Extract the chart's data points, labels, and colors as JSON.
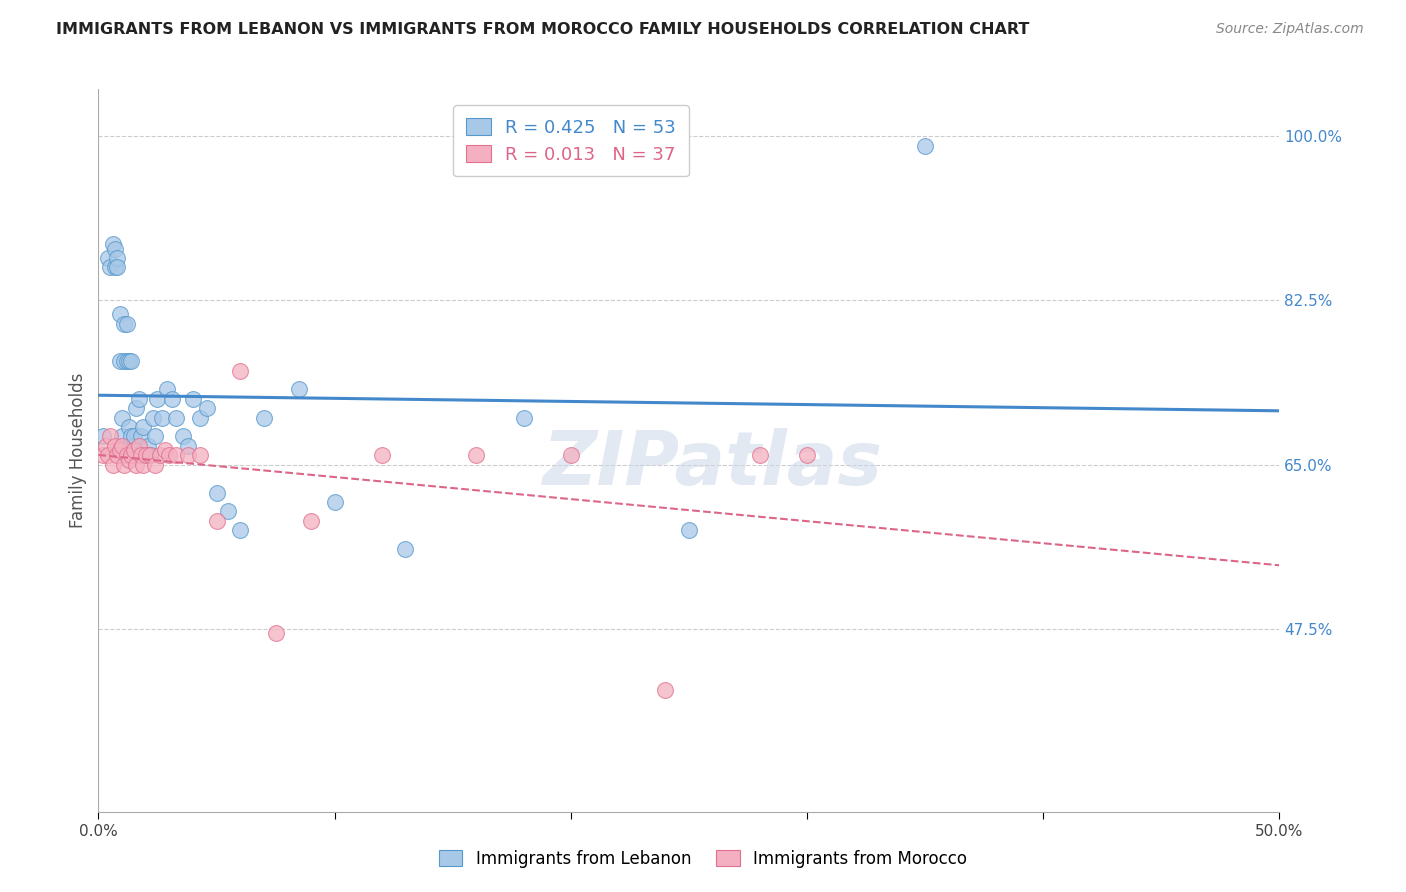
{
  "title": "IMMIGRANTS FROM LEBANON VS IMMIGRANTS FROM MOROCCO FAMILY HOUSEHOLDS CORRELATION CHART",
  "source": "Source: ZipAtlas.com",
  "ylabel": "Family Households",
  "xlim": [
    0.0,
    0.5
  ],
  "ylim": [
    0.28,
    1.05
  ],
  "yticks": [
    0.475,
    0.65,
    0.825,
    1.0
  ],
  "ytick_labels": [
    "47.5%",
    "65.0%",
    "82.5%",
    "100.0%"
  ],
  "xticks": [
    0.0,
    0.1,
    0.2,
    0.3,
    0.4,
    0.5
  ],
  "xtick_labels": [
    "0.0%",
    "",
    "",
    "",
    "",
    "50.0%"
  ],
  "r_lebanon": 0.425,
  "n_lebanon": 53,
  "r_morocco": 0.013,
  "n_morocco": 37,
  "color_lebanon": "#a8c8e8",
  "color_morocco": "#f4b0c0",
  "edge_lebanon": "#5599cc",
  "edge_morocco": "#e07090",
  "line_color_lebanon": "#4488cc",
  "line_color_morocco": "#dd6688",
  "watermark": "ZIPatlas",
  "lebanon_x": [
    0.002,
    0.004,
    0.005,
    0.006,
    0.007,
    0.007,
    0.008,
    0.008,
    0.009,
    0.009,
    0.01,
    0.01,
    0.011,
    0.011,
    0.012,
    0.012,
    0.013,
    0.013,
    0.013,
    0.014,
    0.014,
    0.015,
    0.015,
    0.016,
    0.016,
    0.017,
    0.018,
    0.019,
    0.02,
    0.021,
    0.022,
    0.023,
    0.024,
    0.025,
    0.027,
    0.029,
    0.031,
    0.033,
    0.036,
    0.038,
    0.04,
    0.043,
    0.046,
    0.05,
    0.055,
    0.06,
    0.07,
    0.085,
    0.1,
    0.13,
    0.18,
    0.25,
    0.35
  ],
  "lebanon_y": [
    0.68,
    0.87,
    0.86,
    0.885,
    0.88,
    0.86,
    0.87,
    0.86,
    0.76,
    0.81,
    0.68,
    0.7,
    0.76,
    0.8,
    0.76,
    0.8,
    0.67,
    0.69,
    0.76,
    0.68,
    0.76,
    0.67,
    0.68,
    0.66,
    0.71,
    0.72,
    0.68,
    0.69,
    0.66,
    0.67,
    0.66,
    0.7,
    0.68,
    0.72,
    0.7,
    0.73,
    0.72,
    0.7,
    0.68,
    0.67,
    0.72,
    0.7,
    0.71,
    0.62,
    0.6,
    0.58,
    0.7,
    0.73,
    0.61,
    0.56,
    0.7,
    0.58,
    0.99
  ],
  "morocco_x": [
    0.002,
    0.003,
    0.004,
    0.005,
    0.006,
    0.007,
    0.008,
    0.009,
    0.01,
    0.011,
    0.012,
    0.013,
    0.014,
    0.015,
    0.016,
    0.017,
    0.018,
    0.019,
    0.02,
    0.022,
    0.024,
    0.026,
    0.028,
    0.03,
    0.033,
    0.038,
    0.043,
    0.05,
    0.06,
    0.075,
    0.09,
    0.12,
    0.16,
    0.2,
    0.24,
    0.28,
    0.3
  ],
  "morocco_y": [
    0.66,
    0.67,
    0.66,
    0.68,
    0.65,
    0.67,
    0.66,
    0.665,
    0.67,
    0.65,
    0.66,
    0.655,
    0.66,
    0.665,
    0.65,
    0.67,
    0.66,
    0.65,
    0.66,
    0.66,
    0.65,
    0.66,
    0.665,
    0.66,
    0.66,
    0.66,
    0.66,
    0.59,
    0.75,
    0.47,
    0.59,
    0.66,
    0.66,
    0.66,
    0.41,
    0.66,
    0.66
  ]
}
